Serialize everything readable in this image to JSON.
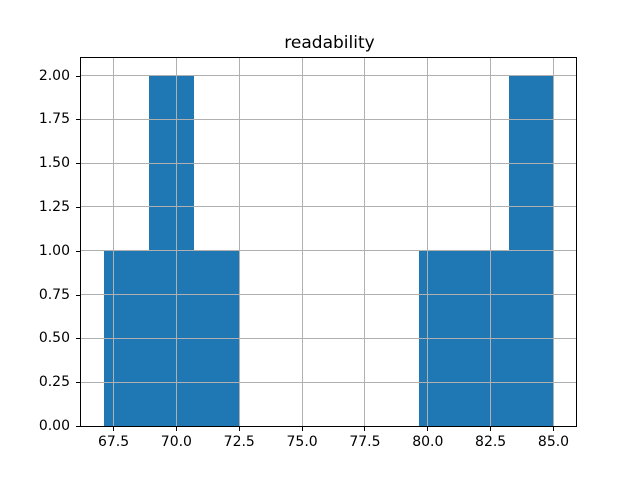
{
  "chart_data": {
    "type": "bar",
    "subtype": "histogram",
    "title": "readability",
    "xlabel": "",
    "ylabel": "",
    "bin_edges": [
      67.1,
      68.89,
      70.68,
      72.47,
      74.26,
      76.05,
      77.84,
      79.63,
      81.42,
      83.21,
      85.0
    ],
    "counts": [
      1,
      2,
      1,
      0,
      0,
      0,
      0,
      1,
      1,
      2
    ],
    "xlim": [
      66.205,
      85.895
    ],
    "ylim": [
      0,
      2.1
    ],
    "x_ticks": [
      {
        "value": 67.5,
        "label": "67.5"
      },
      {
        "value": 70.0,
        "label": "70.0"
      },
      {
        "value": 72.5,
        "label": "72.5"
      },
      {
        "value": 75.0,
        "label": "75.0"
      },
      {
        "value": 77.5,
        "label": "77.5"
      },
      {
        "value": 80.0,
        "label": "80.0"
      },
      {
        "value": 82.5,
        "label": "82.5"
      },
      {
        "value": 85.0,
        "label": "85.0"
      }
    ],
    "y_ticks": [
      {
        "value": 0.0,
        "label": "0.00"
      },
      {
        "value": 0.25,
        "label": "0.25"
      },
      {
        "value": 0.5,
        "label": "0.50"
      },
      {
        "value": 0.75,
        "label": "0.75"
      },
      {
        "value": 1.0,
        "label": "1.00"
      },
      {
        "value": 1.25,
        "label": "1.25"
      },
      {
        "value": 1.5,
        "label": "1.50"
      },
      {
        "value": 1.75,
        "label": "1.75"
      },
      {
        "value": 2.0,
        "label": "2.00"
      }
    ],
    "grid": true,
    "legend": null,
    "colors": {
      "bar": "#1f77b4",
      "grid": "#b0b0b0",
      "spine": "#000000",
      "background": "#ffffff",
      "text": "#000000"
    }
  }
}
